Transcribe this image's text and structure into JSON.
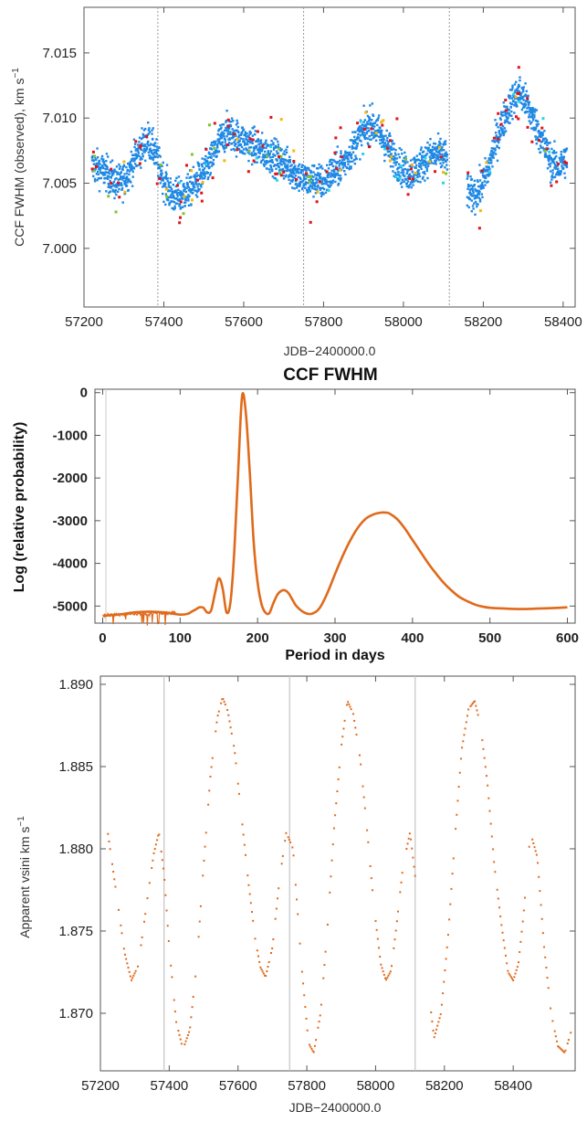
{
  "colors": {
    "blue": "#1e88e5",
    "orange": "#e06a1b",
    "red": "#e3131b",
    "cyan": "#25d5e8",
    "green": "#7cc62c",
    "yellow": "#f2b80a",
    "gridline": "#9a9a9a"
  },
  "chart_data": [
    {
      "type": "scatter",
      "title": "",
      "xlabel": "JDB−2400000.0",
      "ylabel": "CCF FWHM (observed), km s",
      "ylabel_sup": "−1",
      "xlim": [
        57200,
        58430
      ],
      "ylim": [
        6.9955,
        7.0185
      ],
      "x_ticks": [
        57200,
        57400,
        57600,
        57800,
        58000,
        58200,
        58400
      ],
      "x_tick_labels": [
        "57200",
        "57400",
        "57600",
        "57800",
        "58000",
        "58200",
        "58400"
      ],
      "y_ticks": [
        7.0,
        7.005,
        7.01,
        7.015
      ],
      "y_tick_labels": [
        "7.000",
        "7.005",
        "7.010",
        "7.015"
      ],
      "vlines": [
        57385,
        57750,
        58115
      ],
      "observation_gap": [
        58110,
        58160
      ],
      "trend": [
        {
          "x": 57220,
          "y": 7.0063
        },
        {
          "x": 57240,
          "y": 7.0061
        },
        {
          "x": 57260,
          "y": 7.0057
        },
        {
          "x": 57280,
          "y": 7.005
        },
        {
          "x": 57300,
          "y": 7.0052
        },
        {
          "x": 57320,
          "y": 7.0064
        },
        {
          "x": 57340,
          "y": 7.0076
        },
        {
          "x": 57360,
          "y": 7.0084
        },
        {
          "x": 57380,
          "y": 7.0072
        },
        {
          "x": 57400,
          "y": 7.0052
        },
        {
          "x": 57420,
          "y": 7.004
        },
        {
          "x": 57440,
          "y": 7.004
        },
        {
          "x": 57460,
          "y": 7.0044
        },
        {
          "x": 57480,
          "y": 7.005
        },
        {
          "x": 57500,
          "y": 7.0058
        },
        {
          "x": 57520,
          "y": 7.0068
        },
        {
          "x": 57540,
          "y": 7.0082
        },
        {
          "x": 57560,
          "y": 7.009
        },
        {
          "x": 57580,
          "y": 7.0086
        },
        {
          "x": 57600,
          "y": 7.0082
        },
        {
          "x": 57620,
          "y": 7.008
        },
        {
          "x": 57640,
          "y": 7.0075
        },
        {
          "x": 57660,
          "y": 7.0072
        },
        {
          "x": 57680,
          "y": 7.007
        },
        {
          "x": 57700,
          "y": 7.0066
        },
        {
          "x": 57720,
          "y": 7.006
        },
        {
          "x": 57740,
          "y": 7.0055
        },
        {
          "x": 57760,
          "y": 7.0052
        },
        {
          "x": 57780,
          "y": 7.0053
        },
        {
          "x": 57800,
          "y": 7.005
        },
        {
          "x": 57820,
          "y": 7.0058
        },
        {
          "x": 57840,
          "y": 7.0062
        },
        {
          "x": 57860,
          "y": 7.007
        },
        {
          "x": 57880,
          "y": 7.008
        },
        {
          "x": 57900,
          "y": 7.009
        },
        {
          "x": 57920,
          "y": 7.0096
        },
        {
          "x": 57940,
          "y": 7.0088
        },
        {
          "x": 57960,
          "y": 7.0078
        },
        {
          "x": 57980,
          "y": 7.0068
        },
        {
          "x": 58000,
          "y": 7.006
        },
        {
          "x": 58020,
          "y": 7.0058
        },
        {
          "x": 58040,
          "y": 7.0063
        },
        {
          "x": 58060,
          "y": 7.007
        },
        {
          "x": 58080,
          "y": 7.0072
        },
        {
          "x": 58100,
          "y": 7.0072
        },
        {
          "x": 58170,
          "y": 7.004
        },
        {
          "x": 58190,
          "y": 7.0045
        },
        {
          "x": 58210,
          "y": 7.0058
        },
        {
          "x": 58230,
          "y": 7.008
        },
        {
          "x": 58250,
          "y": 7.0098
        },
        {
          "x": 58270,
          "y": 7.0112
        },
        {
          "x": 58290,
          "y": 7.012
        },
        {
          "x": 58310,
          "y": 7.011
        },
        {
          "x": 58330,
          "y": 7.0096
        },
        {
          "x": 58350,
          "y": 7.008
        },
        {
          "x": 58370,
          "y": 7.0066
        },
        {
          "x": 58390,
          "y": 7.0062
        },
        {
          "x": 58410,
          "y": 7.007
        }
      ]
    },
    {
      "type": "line",
      "title": "CCF FWHM",
      "xlabel": "Period in days",
      "ylabel": "Log (relative probability)",
      "xlim": [
        -10,
        610
      ],
      "ylim": [
        -5400,
        80
      ],
      "x_ticks": [
        0,
        100,
        200,
        300,
        400,
        500,
        600
      ],
      "x_tick_labels": [
        "0",
        "100",
        "200",
        "300",
        "400",
        "500",
        "600"
      ],
      "y_ticks": [
        0,
        -1000,
        -2000,
        -3000,
        -4000,
        -5000
      ],
      "y_tick_labels": [
        "0",
        "-1000",
        "-2000",
        "-3000",
        "-4000",
        "-5000"
      ],
      "x": [
        0,
        20,
        40,
        60,
        80,
        100,
        110,
        115,
        120,
        125,
        130,
        135,
        140,
        145,
        150,
        155,
        160,
        165,
        170,
        175,
        180,
        185,
        190,
        195,
        200,
        205,
        210,
        215,
        220,
        225,
        230,
        235,
        240,
        245,
        250,
        260,
        270,
        280,
        290,
        300,
        310,
        320,
        330,
        340,
        350,
        360,
        365,
        370,
        380,
        390,
        400,
        410,
        420,
        430,
        440,
        450,
        460,
        470,
        480,
        490,
        500,
        520,
        540,
        560,
        580,
        600
      ],
      "values": [
        -5230,
        -5200,
        -5150,
        -5130,
        -5150,
        -5200,
        -5180,
        -5130,
        -5080,
        -5030,
        -5040,
        -5150,
        -5100,
        -4700,
        -4350,
        -4600,
        -5150,
        -4900,
        -3700,
        -1800,
        -80,
        -500,
        -1900,
        -3500,
        -4450,
        -4950,
        -5150,
        -5170,
        -4950,
        -4750,
        -4650,
        -4630,
        -4700,
        -4850,
        -5000,
        -5150,
        -5180,
        -5050,
        -4700,
        -4250,
        -3820,
        -3450,
        -3150,
        -2950,
        -2850,
        -2810,
        -2810,
        -2830,
        -2960,
        -3180,
        -3450,
        -3720,
        -3990,
        -4230,
        -4450,
        -4630,
        -4780,
        -4880,
        -4960,
        -5010,
        -5040,
        -5060,
        -5070,
        -5060,
        -5050,
        -5030
      ]
    },
    {
      "type": "scatter",
      "title": "",
      "xlabel": "JDB−2400000.0",
      "ylabel": "Apparent vsini km s",
      "ylabel_sup": "−1",
      "xlim": [
        57200,
        58580
      ],
      "ylim": [
        1.8665,
        1.8905
      ],
      "x_ticks": [
        57200,
        57400,
        57600,
        57800,
        58000,
        58200,
        58400
      ],
      "x_tick_labels": [
        "57200",
        "57400",
        "57600",
        "57800",
        "58000",
        "58200",
        "58400"
      ],
      "y_ticks": [
        1.87,
        1.875,
        1.88,
        1.885,
        1.89
      ],
      "y_tick_labels": [
        "1.870",
        "1.875",
        "1.880",
        "1.885",
        "1.890"
      ],
      "vlines": [
        57385,
        57750,
        58115
      ],
      "observation_gap": [
        58120,
        58160
      ],
      "x": [
        57220,
        57245,
        57270,
        57290,
        57310,
        57340,
        57355,
        57370,
        57385,
        57400,
        57420,
        57440,
        57460,
        57480,
        57500,
        57520,
        57540,
        57555,
        57570,
        57590,
        57610,
        57630,
        57650,
        57665,
        57680,
        57700,
        57720,
        57740,
        57760,
        57785,
        57805,
        57820,
        57840,
        57860,
        57880,
        57900,
        57918,
        57935,
        57955,
        57975,
        57995,
        58015,
        58030,
        58045,
        58060,
        58080,
        58100,
        58170,
        58190,
        58210,
        58230,
        58250,
        58270,
        58288,
        58305,
        58325,
        58345,
        58365,
        58385,
        58400,
        58415,
        58430,
        58450,
        58470,
        58490,
        58510,
        58530,
        58550,
        58570
      ],
      "values": [
        1.8812,
        1.8775,
        1.8737,
        1.872,
        1.8729,
        1.8775,
        1.8797,
        1.881,
        1.8785,
        1.874,
        1.8695,
        1.8678,
        1.869,
        1.873,
        1.879,
        1.8845,
        1.888,
        1.8892,
        1.8884,
        1.886,
        1.882,
        1.878,
        1.8745,
        1.8728,
        1.8722,
        1.874,
        1.878,
        1.881,
        1.88,
        1.8728,
        1.8682,
        1.8676,
        1.87,
        1.8752,
        1.8815,
        1.8862,
        1.889,
        1.8882,
        1.8855,
        1.8812,
        1.8765,
        1.873,
        1.872,
        1.8726,
        1.8752,
        1.879,
        1.881,
        1.8685,
        1.87,
        1.8745,
        1.8805,
        1.886,
        1.8885,
        1.889,
        1.8875,
        1.884,
        1.879,
        1.8755,
        1.8725,
        1.872,
        1.873,
        1.876,
        1.881,
        1.8795,
        1.874,
        1.87,
        1.868,
        1.8676,
        1.869
      ]
    }
  ]
}
